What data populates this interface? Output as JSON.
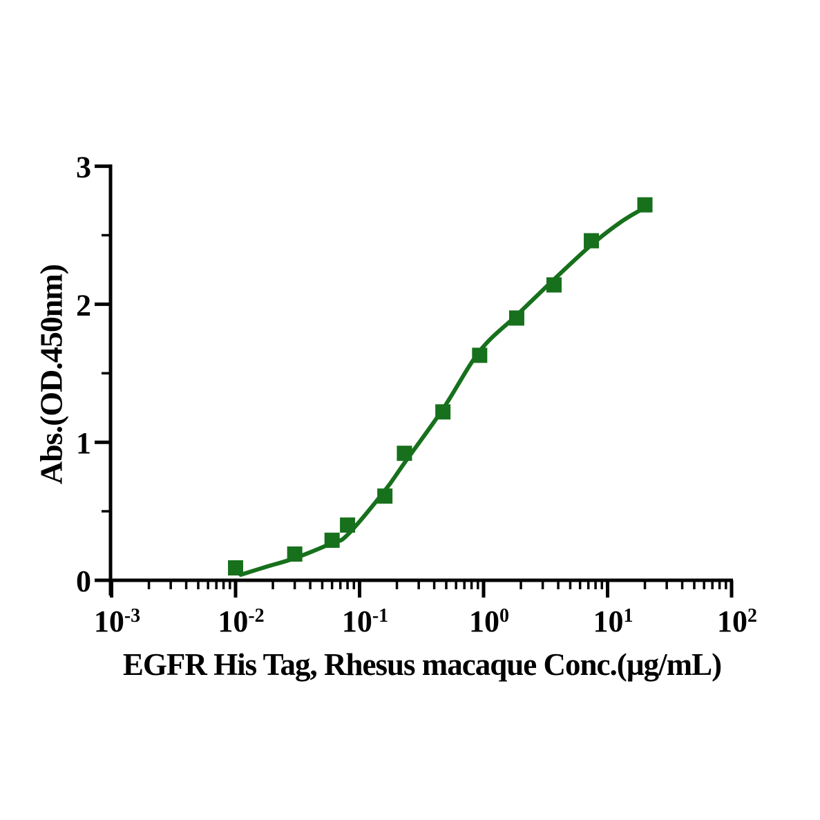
{
  "chart_data": {
    "type": "scatter",
    "title": "",
    "xlabel": "EGFR His Tag, Rhesus macaque Conc.(µg/mL)",
    "ylabel": "Abs.(OD.450nm)",
    "x_scale": "log10",
    "x_unit": "µg/mL",
    "y_unit": "OD 450 nm absorbance",
    "xlim_log10": [
      -3,
      2
    ],
    "ylim": [
      0,
      3
    ],
    "x_major_tick_exponents": [
      -3,
      -2,
      -1,
      0,
      1,
      2
    ],
    "x_minor_tick_multiples": [
      2,
      3,
      4,
      5,
      6,
      7,
      8,
      9
    ],
    "y_major_ticks": [
      3,
      2,
      1,
      0
    ],
    "y_minor_ticks": [
      0.5,
      1.5,
      2.5
    ],
    "grid": false,
    "legend_position": "none",
    "series": [
      {
        "name": "EGFR His Tag, Rhesus macaque",
        "marker": "filled-square",
        "color": "#17701c",
        "points": [
          {
            "x": 0.01,
            "y": 0.09
          },
          {
            "x": 0.03,
            "y": 0.19
          },
          {
            "x": 0.06,
            "y": 0.29
          },
          {
            "x": 0.08,
            "y": 0.4
          },
          {
            "x": 0.16,
            "y": 0.61
          },
          {
            "x": 0.23,
            "y": 0.92
          },
          {
            "x": 0.47,
            "y": 1.22
          },
          {
            "x": 0.93,
            "y": 1.63
          },
          {
            "x": 1.85,
            "y": 1.9
          },
          {
            "x": 3.7,
            "y": 2.14
          },
          {
            "x": 7.4,
            "y": 2.46
          },
          {
            "x": 20,
            "y": 2.72
          }
        ]
      }
    ],
    "fit_curve": {
      "type": "4PL-sigmoid-fit-line",
      "color": "#17701c",
      "anchors": [
        [
          0.011,
          0.04
        ],
        [
          0.018,
          0.1
        ],
        [
          0.03,
          0.16
        ],
        [
          0.06,
          0.27
        ],
        [
          0.08,
          0.33
        ],
        [
          0.16,
          0.65
        ],
        [
          0.23,
          0.85
        ],
        [
          0.47,
          1.24
        ],
        [
          0.93,
          1.66
        ],
        [
          1.85,
          1.92
        ],
        [
          3.7,
          2.18
        ],
        [
          7.4,
          2.43
        ],
        [
          13,
          2.6
        ],
        [
          20,
          2.7
        ]
      ]
    }
  },
  "style": {
    "background": "#ffffff",
    "axis_color": "#000000",
    "series_color": "#17701c"
  }
}
